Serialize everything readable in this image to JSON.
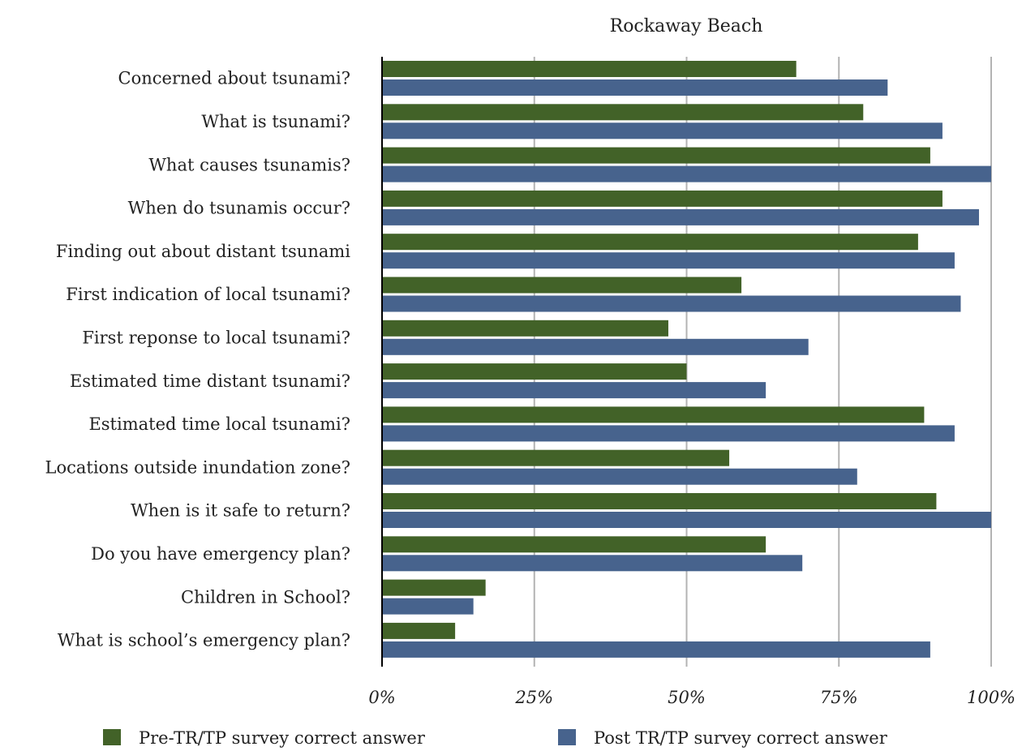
{
  "chart_data": {
    "type": "bar",
    "orientation": "horizontal",
    "title": "Rockaway Beach",
    "categories": [
      "Concerned about tsunami?",
      "What is tsunami?",
      "What causes tsunamis?",
      "When do tsunamis occur?",
      "Finding out about distant tsunami",
      "First indication of local tsunami?",
      "First reponse to local tsunami?",
      "Estimated time distant tsunami?",
      "Estimated time local tsunami?",
      "Locations outside inundation zone?",
      "When is it safe to return?",
      "Do you have emergency plan?",
      "Children in School?",
      "What is school’s emergency plan?"
    ],
    "series": [
      {
        "name": "Pre-TR/TP survey correct answer",
        "color": "#426228",
        "values": [
          0.68,
          0.79,
          0.9,
          0.92,
          0.88,
          0.59,
          0.47,
          0.5,
          0.89,
          0.57,
          0.91,
          0.63,
          0.17,
          0.12
        ]
      },
      {
        "name": "Post TR/TP survey correct answer",
        "color": "#47638d",
        "values": [
          0.83,
          0.92,
          1.0,
          0.98,
          0.94,
          0.95,
          0.7,
          0.63,
          0.94,
          0.78,
          1.0,
          0.69,
          0.15,
          0.9
        ]
      }
    ],
    "xlim": [
      0,
      1
    ],
    "xticks": [
      0,
      0.25,
      0.5,
      0.75,
      1
    ],
    "xtick_labels": [
      "0%",
      "25%",
      "50%",
      "75%",
      "100%"
    ],
    "xlabel": "",
    "ylabel": "",
    "grid": "vertical",
    "gridline_color": "#b3b3b3",
    "legend_position": "bottom"
  }
}
